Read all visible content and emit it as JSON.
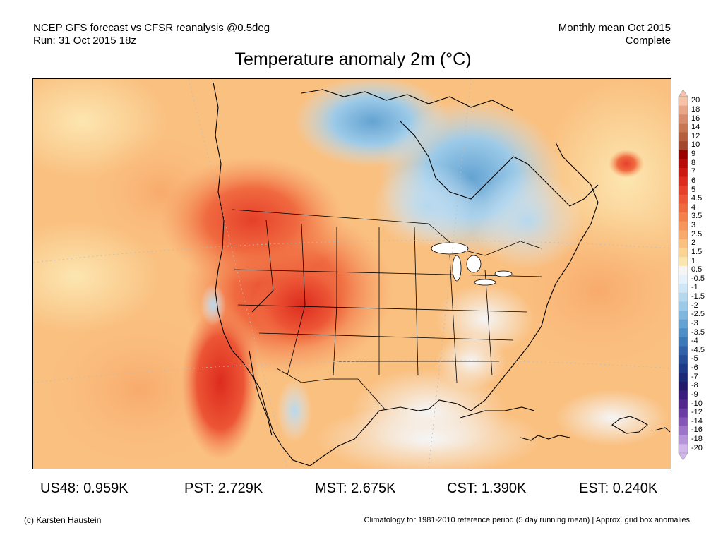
{
  "header": {
    "line1_left": "NCEP GFS forecast vs CFSR reanalysis @0.5deg",
    "line2_left": "Run: 31 Oct 2015 18z",
    "line1_right": "Monthly mean Oct 2015",
    "line2_right": "Complete"
  },
  "title": "Temperature anomaly 2m (°C)",
  "colorbar": {
    "labels": [
      "20",
      "18",
      "16",
      "14",
      "12",
      "10",
      "9",
      "8",
      "7",
      "6",
      "5",
      "4.5",
      "4",
      "3.5",
      "3",
      "2.5",
      "2",
      "1.5",
      "1",
      "0.5",
      "-0.5",
      "-1",
      "-1.5",
      "-2",
      "-2.5",
      "-3",
      "-3.5",
      "-4",
      "-4.5",
      "-5",
      "-6",
      "-7",
      "-8",
      "-9",
      "-10",
      "-12",
      "-14",
      "-16",
      "-18",
      "-20"
    ],
    "colors": [
      "#f6c2a8",
      "#e9a587",
      "#d98c6b",
      "#c87552",
      "#b45f3e",
      "#a3482d",
      "#990000",
      "#b80a0a",
      "#cc1a12",
      "#dd2c1e",
      "#e6402a",
      "#ec5535",
      "#f06a40",
      "#f3804d",
      "#f6955c",
      "#f8aa6c",
      "#fac080",
      "#fbd494",
      "#fce6b0",
      "#f5f5f5",
      "#e5f1fb",
      "#cfe6f6",
      "#b6d8ef",
      "#9ccae8",
      "#80b7de",
      "#64a3d2",
      "#4d8ec6",
      "#3b78b8",
      "#2f62a8",
      "#254d98",
      "#1e3b88",
      "#1b2b78",
      "#22196b",
      "#3a1c7e",
      "#52288f",
      "#6b3da3",
      "#8457b7",
      "#9e74c9",
      "#b795da",
      "#d2b8ea"
    ]
  },
  "stats": [
    {
      "label": "US48: 0.959K"
    },
    {
      "label": "PST: 2.729K"
    },
    {
      "label": "MST: 2.675K"
    },
    {
      "label": "CST: 1.390K"
    },
    {
      "label": "EST: 0.240K"
    }
  ],
  "footer": {
    "credit": "(c) Karsten Haustein",
    "note": "Climatology for 1981-2010 reference period (5 day running mean) | Approx. grid box anomalies"
  }
}
